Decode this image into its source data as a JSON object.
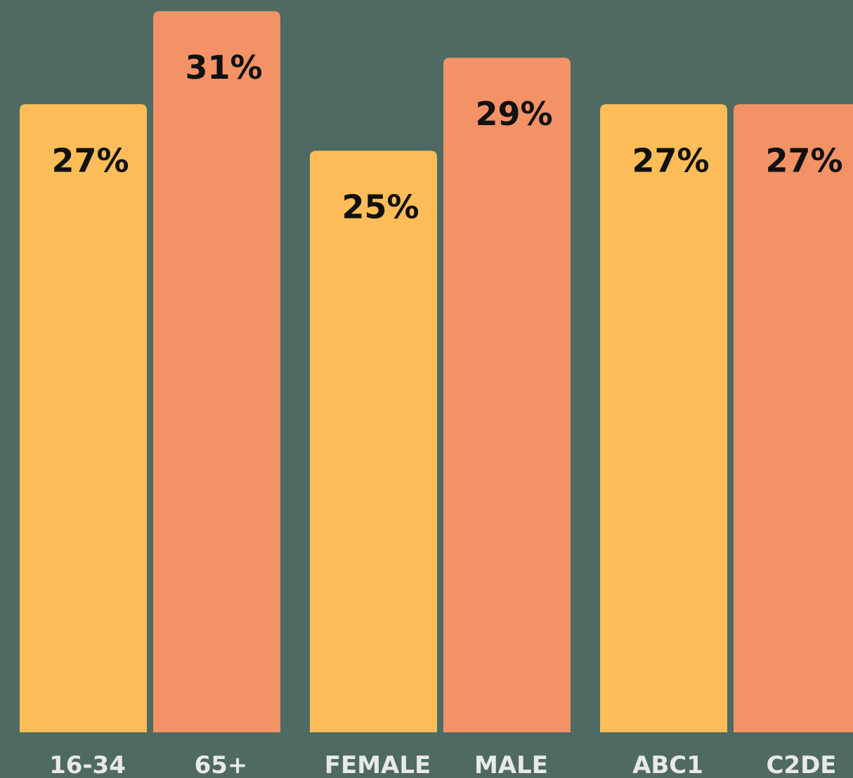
{
  "chart_data": {
    "type": "bar",
    "categories": [
      "16-34",
      "65+",
      "FEMALE",
      "MALE",
      "ABC1",
      "C2DE"
    ],
    "values": [
      27,
      31,
      25,
      29,
      27,
      27
    ],
    "value_labels": [
      "27%",
      "31%",
      "25%",
      "29%",
      "27%",
      "27%"
    ],
    "colors": [
      "#febd59",
      "#f39266",
      "#febd59",
      "#f39266",
      "#febd59",
      "#f39266"
    ]
  }
}
